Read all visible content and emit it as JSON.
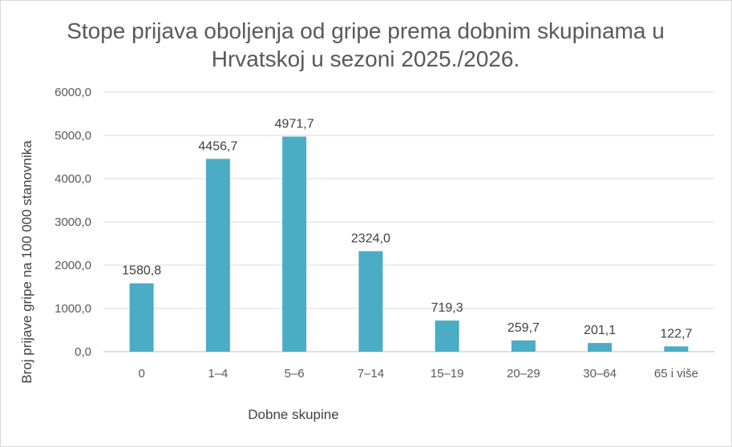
{
  "chart_data": {
    "type": "bar",
    "title_lines": [
      "Stope prijava oboljenja od gripe prema dobnim skupinama u",
      "Hrvatskoj u sezoni 2025./2026."
    ],
    "xlabel": "Dobne skupine",
    "ylabel": "Broj prijave gripe na 100 000 stanovnika",
    "categories": [
      "0",
      "1–4",
      "5–6",
      "7–14",
      "15–19",
      "20–29",
      "30–64",
      "65 i više"
    ],
    "values": [
      1580.8,
      4456.7,
      4971.7,
      2324.0,
      719.3,
      259.7,
      201.1,
      122.7
    ],
    "value_labels": [
      "1580,8",
      "4456,7",
      "4971,7",
      "2324,0",
      "719,3",
      "259,7",
      "201,1",
      "122,7"
    ],
    "ylim": [
      0,
      6000
    ],
    "y_ticks": [
      "0,0",
      "1000,0",
      "2000,0",
      "3000,0",
      "4000,0",
      "5000,0",
      "6000,0"
    ],
    "grid": true,
    "legend": "none",
    "bar_color": "#4bacc6",
    "grid_color": "#d9d9d9"
  }
}
